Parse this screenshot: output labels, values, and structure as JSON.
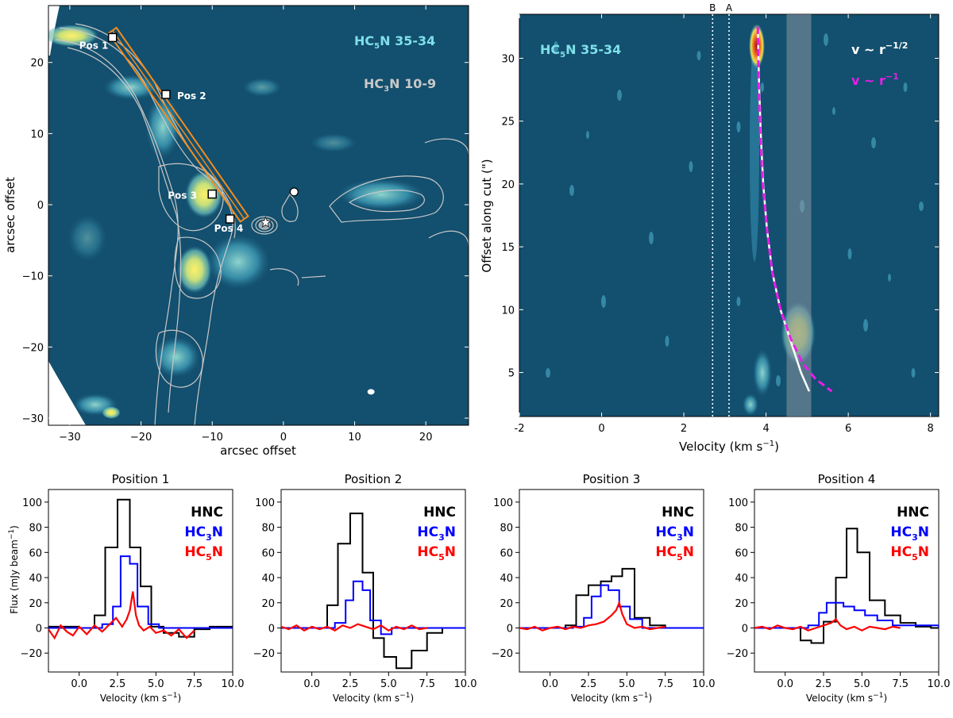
{
  "chart_data": [
    {
      "type": "heatmap",
      "panel": "map",
      "xlabel": "arcsec offset",
      "ylabel": "arcsec offset",
      "xlim": [
        -33,
        26
      ],
      "ylim": [
        -31,
        28
      ],
      "xticks": [
        -30,
        -20,
        -10,
        0,
        10,
        20
      ],
      "yticks": [
        -30,
        -20,
        -10,
        0,
        10,
        20
      ],
      "xtick_labels": [
        "−30",
        "−20",
        "−10",
        "0",
        "10",
        "20"
      ],
      "ytick_labels": [
        "−30",
        "−20",
        "−10",
        "0",
        "10",
        "20"
      ],
      "labels": {
        "line1_main": "HC",
        "line1_sub": "5",
        "line1_rest": "N 35-34",
        "line2_main": "HC",
        "line2_sub": "3",
        "line2_rest": "N 10-9"
      },
      "positions": [
        {
          "label": "Pos 1",
          "x": -24,
          "y": 23.5
        },
        {
          "label": "Pos 2",
          "x": -16.5,
          "y": 15.5
        },
        {
          "label": "Pos 3",
          "x": -10,
          "y": 1.5
        },
        {
          "label": "Pos 4",
          "x": -7.5,
          "y": -2
        }
      ],
      "cut": {
        "from": [
          -24,
          24.5
        ],
        "to": [
          -5.5,
          -2
        ]
      },
      "star": {
        "x": -2.5,
        "y": -2.5
      },
      "circle": {
        "x": 1.5,
        "y": 1.8
      },
      "beam": {
        "x": 12.3,
        "y": -26.3
      },
      "colors": {
        "background": "#134f6e",
        "cut": "#f28c1e",
        "contour": "#c8c8c8"
      }
    },
    {
      "type": "heatmap",
      "panel": "pv",
      "xlabel_main": "Velocity (km s",
      "xlabel_sup": "−1",
      "xlabel_end": ")",
      "ylabel": "Offset along cut (\")",
      "xlim": [
        -2,
        8.2
      ],
      "ylim": [
        1.5,
        33.5
      ],
      "xticks": [
        -2,
        0,
        2,
        4,
        6,
        8
      ],
      "yticks": [
        5,
        10,
        15,
        20,
        25,
        30
      ],
      "xtick_labels": [
        "-2",
        "0",
        "2",
        "4",
        "6",
        "8"
      ],
      "ytick_labels": [
        "5",
        "10",
        "15",
        "20",
        "25",
        "30"
      ],
      "markers": [
        {
          "label": "B",
          "x": 2.7
        },
        {
          "label": "A",
          "x": 3.1
        }
      ],
      "shaded_band": [
        4.5,
        5.1
      ],
      "label": {
        "main": "HC",
        "sub": "5",
        "rest": "N 35-34"
      },
      "legend": [
        {
          "main": "v ~ r",
          "sup": "−1/2",
          "color": "#ffffff"
        },
        {
          "main": "v ~ r",
          "sup": "−1",
          "color": "#e81ee8"
        }
      ],
      "series": [
        {
          "name": "v ~ r^-1/2",
          "style": "solid",
          "x": [
            3.8,
            3.83,
            3.87,
            3.93,
            4.02,
            4.15,
            4.35,
            4.6,
            4.85,
            5.05
          ],
          "y": [
            32.5,
            28,
            24,
            20,
            16.5,
            13,
            10,
            7.5,
            5,
            3.5
          ]
        },
        {
          "name": "v ~ r^-1",
          "style": "dashed",
          "x": [
            3.8,
            3.82,
            3.86,
            3.92,
            4.02,
            4.15,
            4.35,
            4.6,
            4.9,
            5.2,
            5.6
          ],
          "y": [
            32.5,
            28,
            24,
            20,
            16.5,
            13,
            10,
            7.7,
            5.7,
            4.5,
            3.5
          ]
        }
      ],
      "colors": {
        "background": "#134f6e",
        "band": "#8a97a3"
      }
    },
    {
      "type": "line",
      "panel": "spectrum",
      "title": "Position 1",
      "xlim": [
        -2,
        10
      ],
      "ylim": [
        -35,
        110
      ],
      "series": [
        {
          "name": "HNC",
          "color": "#000000",
          "step": true,
          "x": [
            -2,
            0,
            1,
            1.7,
            2.5,
            3.3,
            4,
            4.7,
            5.5,
            6.5,
            7.5,
            8.5,
            9.5,
            10
          ],
          "y": [
            1,
            0,
            10,
            64,
            102,
            64,
            33,
            1,
            -4,
            -7,
            -1,
            1,
            1,
            1
          ]
        },
        {
          "name": "HC3N",
          "color": "#0000ff",
          "step": true,
          "x": [
            -2,
            0,
            1.5,
            2.2,
            2.7,
            3.3,
            3.8,
            4.5,
            5.2,
            6,
            7,
            10
          ],
          "y": [
            0,
            0,
            3,
            17,
            57,
            51,
            17,
            3,
            0,
            0,
            0,
            0
          ]
        },
        {
          "name": "HC5N",
          "color": "#ff0000",
          "step": false,
          "x": [
            -2,
            -1.6,
            -1.2,
            -0.8,
            -0.4,
            0,
            0.5,
            1,
            1.5,
            2,
            2.4,
            2.8,
            3.1,
            3.3,
            3.5,
            3.7,
            3.9,
            4.2,
            4.6,
            5,
            5.5,
            6,
            6.5,
            7,
            7.5
          ],
          "y": [
            -1,
            -8,
            2,
            -3,
            -6,
            1,
            -5,
            2,
            -3,
            3,
            8,
            1,
            7,
            14,
            29,
            10,
            2,
            -2,
            1,
            -4,
            -2,
            -6,
            -1,
            -8,
            -2
          ]
        }
      ],
      "legend": [
        {
          "main": "HNC",
          "sub": "",
          "rest": "",
          "color": "#000000"
        },
        {
          "main": "HC",
          "sub": "3",
          "rest": "N",
          "color": "#0000ff"
        },
        {
          "main": "HC",
          "sub": "5",
          "rest": "N",
          "color": "#ff0000"
        }
      ]
    },
    {
      "type": "line",
      "panel": "spectrum",
      "title": "Position 2",
      "xlim": [
        -2,
        10
      ],
      "ylim": [
        -35,
        110
      ],
      "series": [
        {
          "name": "HNC",
          "color": "#000000",
          "step": true,
          "x": [
            -2,
            0,
            1,
            1.7,
            2.5,
            3.3,
            4,
            4.7,
            5.5,
            6.5,
            7.5,
            8.5,
            9.5,
            10
          ],
          "y": [
            0,
            0,
            18,
            67,
            91,
            44,
            -8,
            -23,
            -32,
            -18,
            -4,
            0,
            0,
            0
          ]
        },
        {
          "name": "HC3N",
          "color": "#0000ff",
          "step": true,
          "x": [
            -2,
            0,
            1.5,
            2.2,
            2.7,
            3.3,
            3.8,
            4.5,
            5.2,
            6,
            7,
            10
          ],
          "y": [
            0,
            0,
            4,
            22,
            37,
            30,
            6,
            -5,
            0,
            0,
            0,
            0
          ]
        },
        {
          "name": "HC5N",
          "color": "#ff0000",
          "step": false,
          "x": [
            -2,
            -1.5,
            -1,
            -0.5,
            0,
            0.5,
            1,
            1.5,
            2,
            2.5,
            3,
            3.5,
            4,
            4.5,
            5,
            5.5,
            6,
            6.5,
            7,
            7.5
          ],
          "y": [
            1,
            -1,
            2,
            -2,
            1,
            -1,
            1,
            -2,
            2,
            0,
            3,
            1,
            -1,
            2,
            -2,
            1,
            -1,
            2,
            -1,
            0
          ]
        }
      ],
      "legend": [
        {
          "main": "HNC",
          "sub": "",
          "rest": "",
          "color": "#000000"
        },
        {
          "main": "HC",
          "sub": "3",
          "rest": "N",
          "color": "#0000ff"
        },
        {
          "main": "HC",
          "sub": "5",
          "rest": "N",
          "color": "#ff0000"
        }
      ]
    },
    {
      "type": "line",
      "panel": "spectrum",
      "title": "Position 3",
      "xlim": [
        -2,
        10
      ],
      "ylim": [
        -35,
        110
      ],
      "series": [
        {
          "name": "HNC",
          "color": "#000000",
          "step": true,
          "x": [
            -2,
            0,
            1,
            1.7,
            2.5,
            3.3,
            4,
            4.7,
            5.5,
            6.5,
            7.5,
            8.5,
            9.5,
            10
          ],
          "y": [
            0,
            0,
            2,
            26,
            34,
            37,
            41,
            47,
            8,
            2,
            0,
            0,
            0,
            0
          ]
        },
        {
          "name": "HC3N",
          "color": "#0000ff",
          "step": true,
          "x": [
            -2,
            0,
            1.5,
            2.2,
            2.7,
            3.3,
            3.8,
            4.5,
            5.2,
            6,
            7,
            10
          ],
          "y": [
            0,
            0,
            1,
            8,
            25,
            34,
            30,
            17,
            7,
            0,
            0,
            0
          ]
        },
        {
          "name": "HC5N",
          "color": "#ff0000",
          "step": false,
          "x": [
            -2,
            -1.5,
            -1,
            -0.5,
            0,
            0.5,
            1,
            1.5,
            2,
            2.5,
            3,
            3.5,
            4,
            4.3,
            4.5,
            4.7,
            5,
            5.5,
            6,
            6.5,
            7,
            7.5
          ],
          "y": [
            0,
            -1,
            1,
            -2,
            0,
            1,
            -1,
            1,
            0,
            2,
            3,
            5,
            10,
            14,
            20,
            11,
            3,
            0,
            1,
            -1,
            0,
            1
          ]
        }
      ],
      "legend": [
        {
          "main": "HNC",
          "sub": "",
          "rest": "",
          "color": "#000000"
        },
        {
          "main": "HC",
          "sub": "3",
          "rest": "N",
          "color": "#0000ff"
        },
        {
          "main": "HC",
          "sub": "5",
          "rest": "N",
          "color": "#ff0000"
        }
      ]
    },
    {
      "type": "line",
      "panel": "spectrum",
      "title": "Position 4",
      "xlim": [
        -2,
        10
      ],
      "ylim": [
        -35,
        110
      ],
      "series": [
        {
          "name": "HNC",
          "color": "#000000",
          "step": true,
          "x": [
            -2,
            0,
            1,
            1.7,
            2.5,
            3.3,
            4,
            4.7,
            5.5,
            6.5,
            7.5,
            8.5,
            9.5,
            10
          ],
          "y": [
            0,
            0,
            -10,
            -12,
            5,
            40,
            79,
            60,
            22,
            10,
            4,
            1,
            0,
            0
          ]
        },
        {
          "name": "HC3N",
          "color": "#0000ff",
          "step": true,
          "x": [
            -2,
            0,
            1.5,
            2.2,
            2.7,
            3.3,
            3.8,
            4.5,
            5.2,
            6,
            7,
            10
          ],
          "y": [
            0,
            0,
            2,
            12,
            20,
            20,
            17,
            14,
            10,
            6,
            2,
            0
          ]
        },
        {
          "name": "HC5N",
          "color": "#ff0000",
          "step": false,
          "x": [
            -2,
            -1.5,
            -1,
            -0.5,
            0,
            0.5,
            1,
            1.5,
            2,
            2.5,
            3,
            3.3,
            3.6,
            4,
            4.5,
            5,
            5.5,
            6,
            6.5,
            7,
            7.5
          ],
          "y": [
            0,
            1,
            -1,
            2,
            0,
            -1,
            1,
            -2,
            0,
            2,
            4,
            7,
            2,
            -1,
            1,
            -2,
            1,
            0,
            -1,
            1,
            0
          ]
        }
      ],
      "legend": [
        {
          "main": "HNC",
          "sub": "",
          "rest": "",
          "color": "#000000"
        },
        {
          "main": "HC",
          "sub": "3",
          "rest": "N",
          "color": "#0000ff"
        },
        {
          "main": "HC",
          "sub": "5",
          "rest": "N",
          "color": "#ff0000"
        }
      ]
    }
  ],
  "spectra_common": {
    "xlabel_main": "Velocity (km s",
    "xlabel_sup": "−1",
    "xlabel_end": ")",
    "ylabel_main": "Flux (mJy beam",
    "ylabel_sup": "−1",
    "ylabel_end": ")",
    "xticks": [
      0,
      2.5,
      5,
      7.5,
      10
    ],
    "xtick_labels": [
      "0.0",
      "2.5",
      "5.0",
      "7.5",
      "10.0"
    ],
    "yticks": [
      -20,
      0,
      20,
      40,
      60,
      80,
      100
    ],
    "ytick_labels": [
      "−20",
      "0",
      "20",
      "40",
      "60",
      "80",
      "100"
    ]
  }
}
